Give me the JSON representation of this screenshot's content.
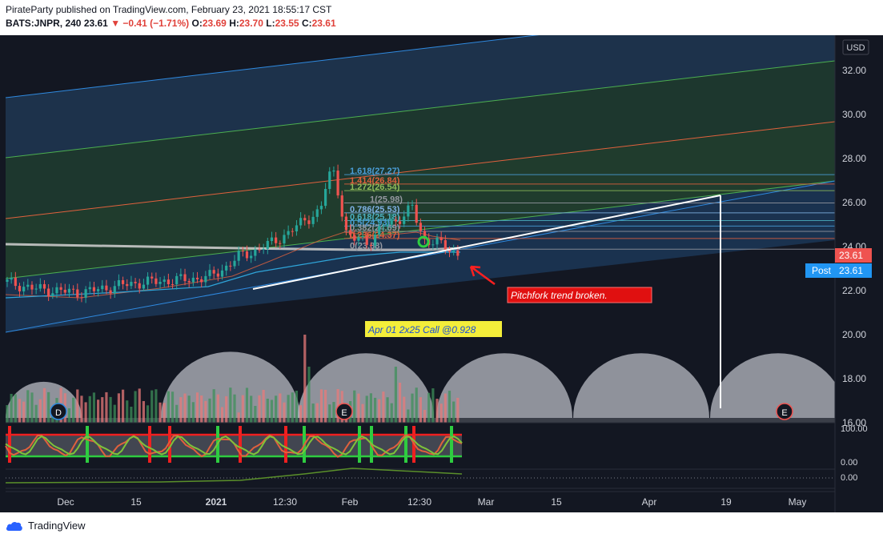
{
  "header": {
    "line1": "PirateParty published on TradingView.com, February 23, 2021 18:55:17 CST",
    "symbol": "BATS:JNPR, 240",
    "last": "23.61",
    "change": "▼ −0.41 (−1.71%)",
    "o_label": "O:",
    "o_val": "23.69",
    "h_label": "H:",
    "h_val": "23.70",
    "l_label": "L:",
    "l_val": "23.55",
    "c_label": "C:",
    "c_val": "23.61"
  },
  "footer": {
    "brand": "TradingView"
  },
  "chart_data": {
    "type": "candlestick",
    "currency": "USD",
    "symbol": "BATS:JNPR",
    "interval": "240",
    "x_ticks": [
      "Dec",
      "15",
      "2021",
      "12:30",
      "Feb",
      "12:30",
      "Mar",
      "15",
      "Apr",
      "19",
      "May"
    ],
    "y_ticks": [
      "32.00",
      "30.00",
      "28.00",
      "26.00",
      "24.00",
      "22.00",
      "20.00",
      "18.00",
      "16.00"
    ],
    "ylim": [
      16,
      33.2
    ],
    "last_price": "23.61",
    "post_label": "Post",
    "post_price": "23.61",
    "fib_levels": [
      {
        "label": "1.618(27.27)",
        "value": 27.27,
        "color": "#4a9ed8"
      },
      {
        "label": "1.414(26.84)",
        "value": 26.84,
        "color": "#e0613d"
      },
      {
        "label": "1.272(26.54)",
        "value": 26.54,
        "color": "#8fbc5a"
      },
      {
        "label": "1(25.98)",
        "value": 25.98,
        "color": "#9598a1"
      },
      {
        "label": "0.786(25.53)",
        "value": 25.53,
        "color": "#7fb2e5"
      },
      {
        "label": "0.618(25.18)",
        "value": 25.18,
        "color": "#4bb0c0"
      },
      {
        "label": "0.5(24.93)",
        "value": 24.93,
        "color": "#4a9ed8"
      },
      {
        "label": "0.382(24.69)",
        "value": 24.69,
        "color": "#9598a1"
      },
      {
        "label": "0.236(24.37)",
        "value": 24.37,
        "color": "#e0613d"
      },
      {
        "label": "0(23.88)",
        "value": 23.88,
        "color": "#9598a1"
      }
    ],
    "earnings_markers": [
      "D",
      "E",
      "E"
    ],
    "annotations": [
      {
        "text": "Pitchfork trend broken.",
        "style": "red-box"
      },
      {
        "text": "Apr 01 2x25 Call @0.928",
        "style": "yellow-box"
      }
    ],
    "oscillator_ticks": [
      "100.00",
      "0.00"
    ],
    "lower_pane_ticks": [
      "0.00"
    ],
    "colors": {
      "up": "#26a69a",
      "down": "#ef5350",
      "background": "#131722"
    }
  }
}
